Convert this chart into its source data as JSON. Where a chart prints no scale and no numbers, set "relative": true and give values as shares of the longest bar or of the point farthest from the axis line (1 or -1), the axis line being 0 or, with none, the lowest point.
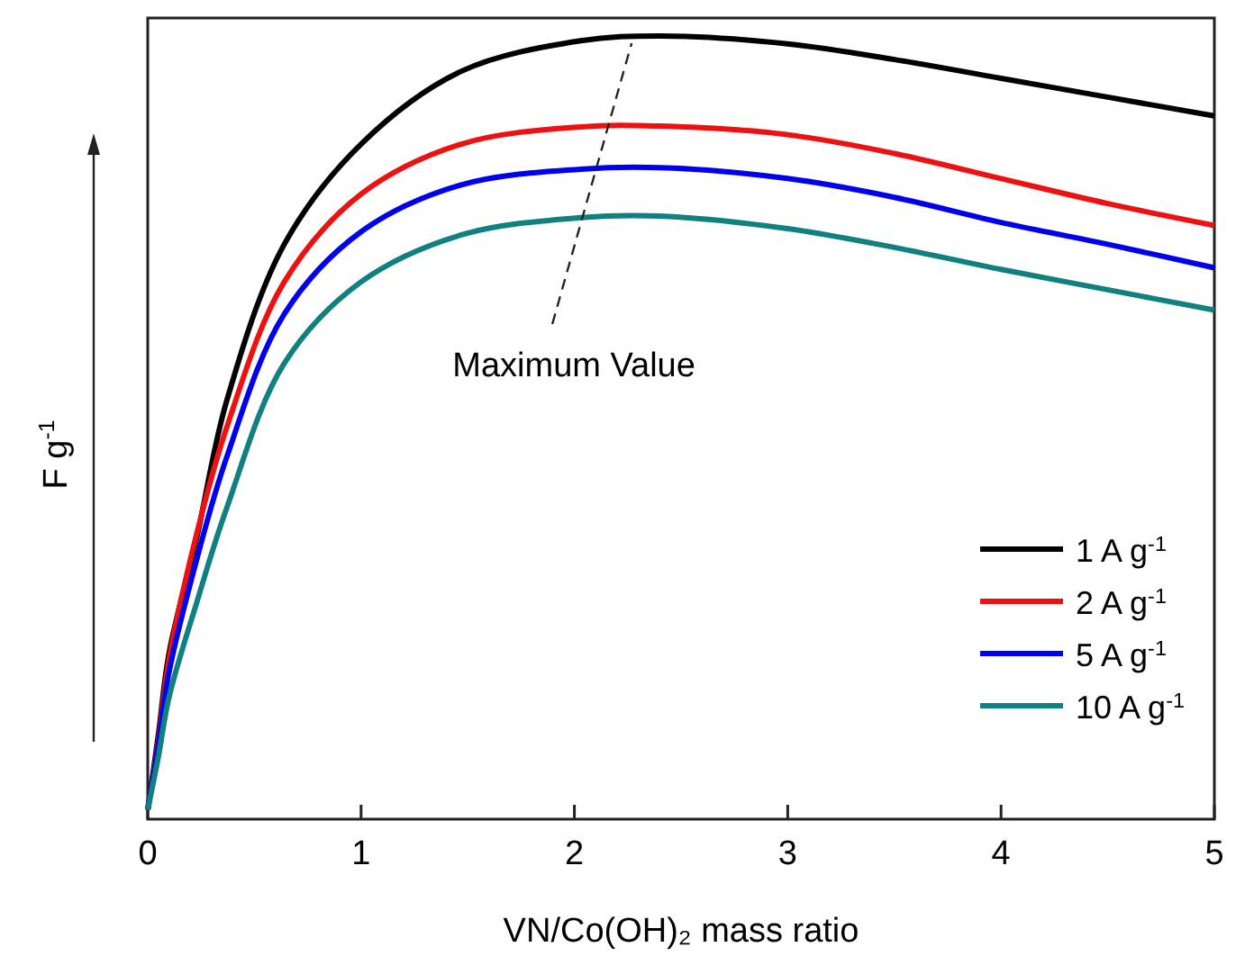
{
  "chart_data": {
    "type": "line",
    "relative": true,
    "xlabel": "VN/Co(OH)₂ mass ratio",
    "ylabel": "F g$^{-1}$",
    "xlim": [
      0,
      5
    ],
    "xticks": [
      0,
      1,
      2,
      3,
      4,
      5
    ],
    "legend": "bottom right",
    "marker": "none",
    "line_style": "solid",
    "grid": false,
    "x": [
      0,
      0.05,
      0.1,
      0.23,
      0.37,
      0.64,
      1,
      1.47,
      2.03,
      2.4,
      3,
      3.5,
      4,
      4.5,
      5
    ],
    "series": [
      {
        "name": "1 A g$^{-1}$",
        "color": "#000000",
        "values": [
          0.012,
          0.108,
          0.212,
          0.36,
          0.534,
          0.734,
          0.862,
          0.955,
          0.994,
          1,
          0.99,
          0.97,
          0.946,
          0.922,
          0.898
        ]
      },
      {
        "name": "2 A g$^{-1}$",
        "color": "#ee1111",
        "values": [
          0.012,
          0.1,
          0.204,
          0.365,
          0.5,
          0.686,
          0.798,
          0.862,
          0.884,
          0.885,
          0.874,
          0.85,
          0.818,
          0.786,
          0.758
        ]
      },
      {
        "name": "5 A g$^{-1}$",
        "color": "#0000ee",
        "values": [
          0.012,
          0.095,
          0.188,
          0.332,
          0.462,
          0.645,
          0.75,
          0.81,
          0.83,
          0.832,
          0.818,
          0.794,
          0.762,
          0.734,
          0.704
        ]
      },
      {
        "name": "10 A g$^{-1}$",
        "color": "#118080",
        "values": [
          0.012,
          0.08,
          0.156,
          0.277,
          0.397,
          0.582,
          0.686,
          0.746,
          0.768,
          0.77,
          0.754,
          0.73,
          0.702,
          0.676,
          0.65
        ]
      }
    ],
    "annotations": [
      "Maximum Value"
    ]
  }
}
